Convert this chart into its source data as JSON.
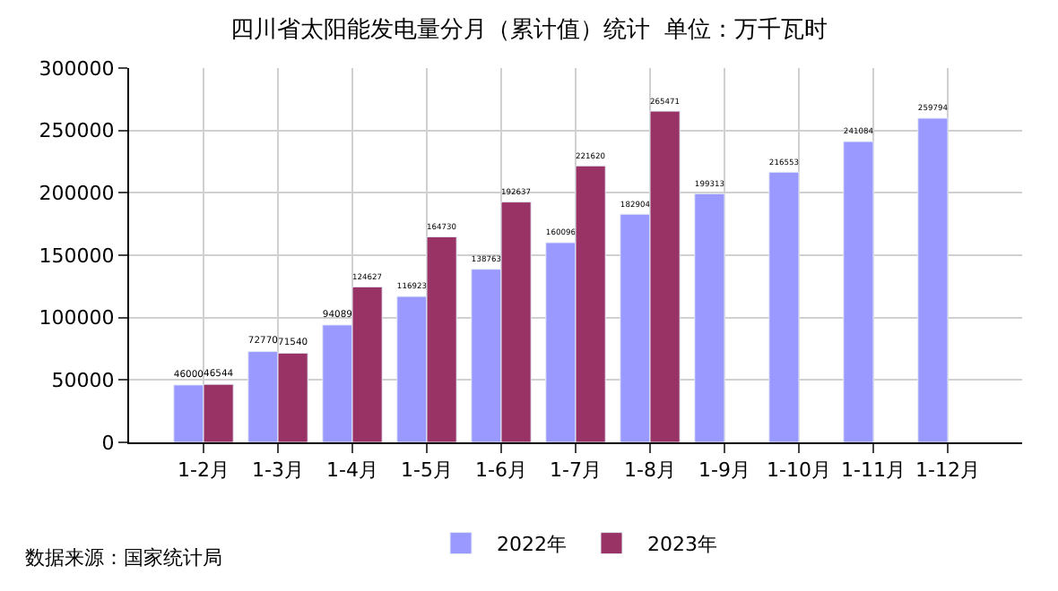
{
  "chart_data": {
    "type": "bar",
    "title": "四川省太阳能发电量分月（累计值）统计  单位：万千瓦时",
    "categories": [
      "1-2月",
      "1-3月",
      "1-4月",
      "1-5月",
      "1-6月",
      "1-7月",
      "1-8月",
      "1-9月",
      "1-10月",
      "1-11月",
      "1-12月"
    ],
    "series": [
      {
        "name": "2022年",
        "color": "#9999ff",
        "values": [
          46000,
          72770,
          94089,
          116923,
          138763,
          160096,
          182904,
          199313,
          216553,
          241084,
          259794
        ]
      },
      {
        "name": "2023年",
        "color": "#993366",
        "values": [
          46544,
          71540,
          124627,
          164730,
          192637,
          221620,
          265471,
          null,
          null,
          null,
          null
        ]
      }
    ],
    "ylim": [
      0,
      300000
    ],
    "yticks": [
      0,
      50000,
      100000,
      150000,
      200000,
      250000,
      300000
    ],
    "grid": true,
    "legend": "bottom",
    "data_labels": true,
    "annotations": [
      "数据来源：国家统计局"
    ]
  }
}
